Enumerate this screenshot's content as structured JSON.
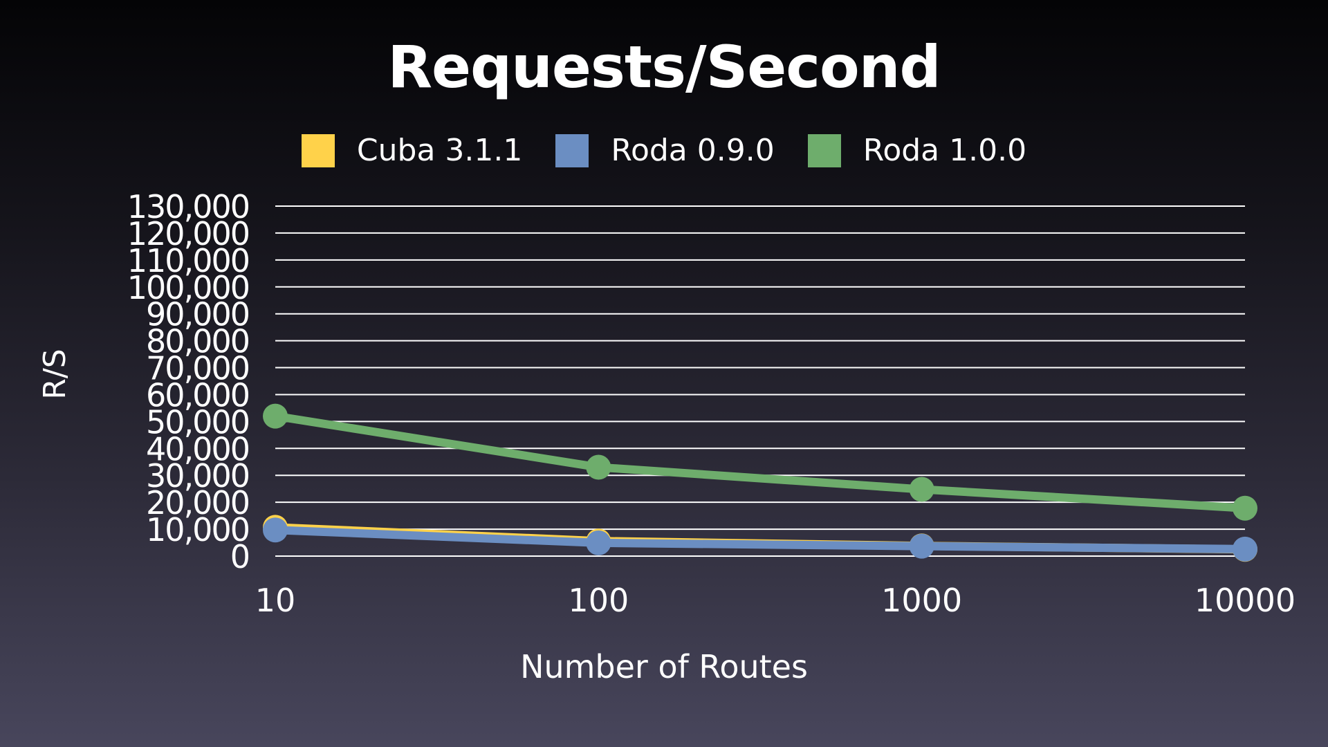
{
  "chart_data": {
    "type": "line",
    "title": "Requests/Second",
    "xlabel": "Number of Routes",
    "ylabel": "R/S",
    "x_scale": "log",
    "categories": [
      "10",
      "100",
      "1000",
      "10000"
    ],
    "x": [
      10,
      100,
      1000,
      10000
    ],
    "ylim": [
      0,
      130000
    ],
    "y_ticks": [
      0,
      10000,
      20000,
      30000,
      40000,
      50000,
      60000,
      70000,
      80000,
      90000,
      100000,
      110000,
      120000,
      130000
    ],
    "y_tick_labels": [
      "0",
      "10,000",
      "20,000",
      "30,000",
      "40,000",
      "50,000",
      "60,000",
      "70,000",
      "80,000",
      "90,000",
      "100,000",
      "110,000",
      "120,000",
      "130,000"
    ],
    "grid": true,
    "legend_position": "top-center",
    "series": [
      {
        "name": "Cuba 3.1.1",
        "color": "#ffd24a",
        "values": [
          10700,
          5600,
          3800,
          2500
        ]
      },
      {
        "name": "Roda 0.9.0",
        "color": "#6b8ec2",
        "values": [
          9700,
          4900,
          3700,
          2600
        ]
      },
      {
        "name": "Roda 1.0.0",
        "color": "#6ead6c",
        "values": [
          52000,
          33000,
          24800,
          17800
        ]
      }
    ]
  }
}
